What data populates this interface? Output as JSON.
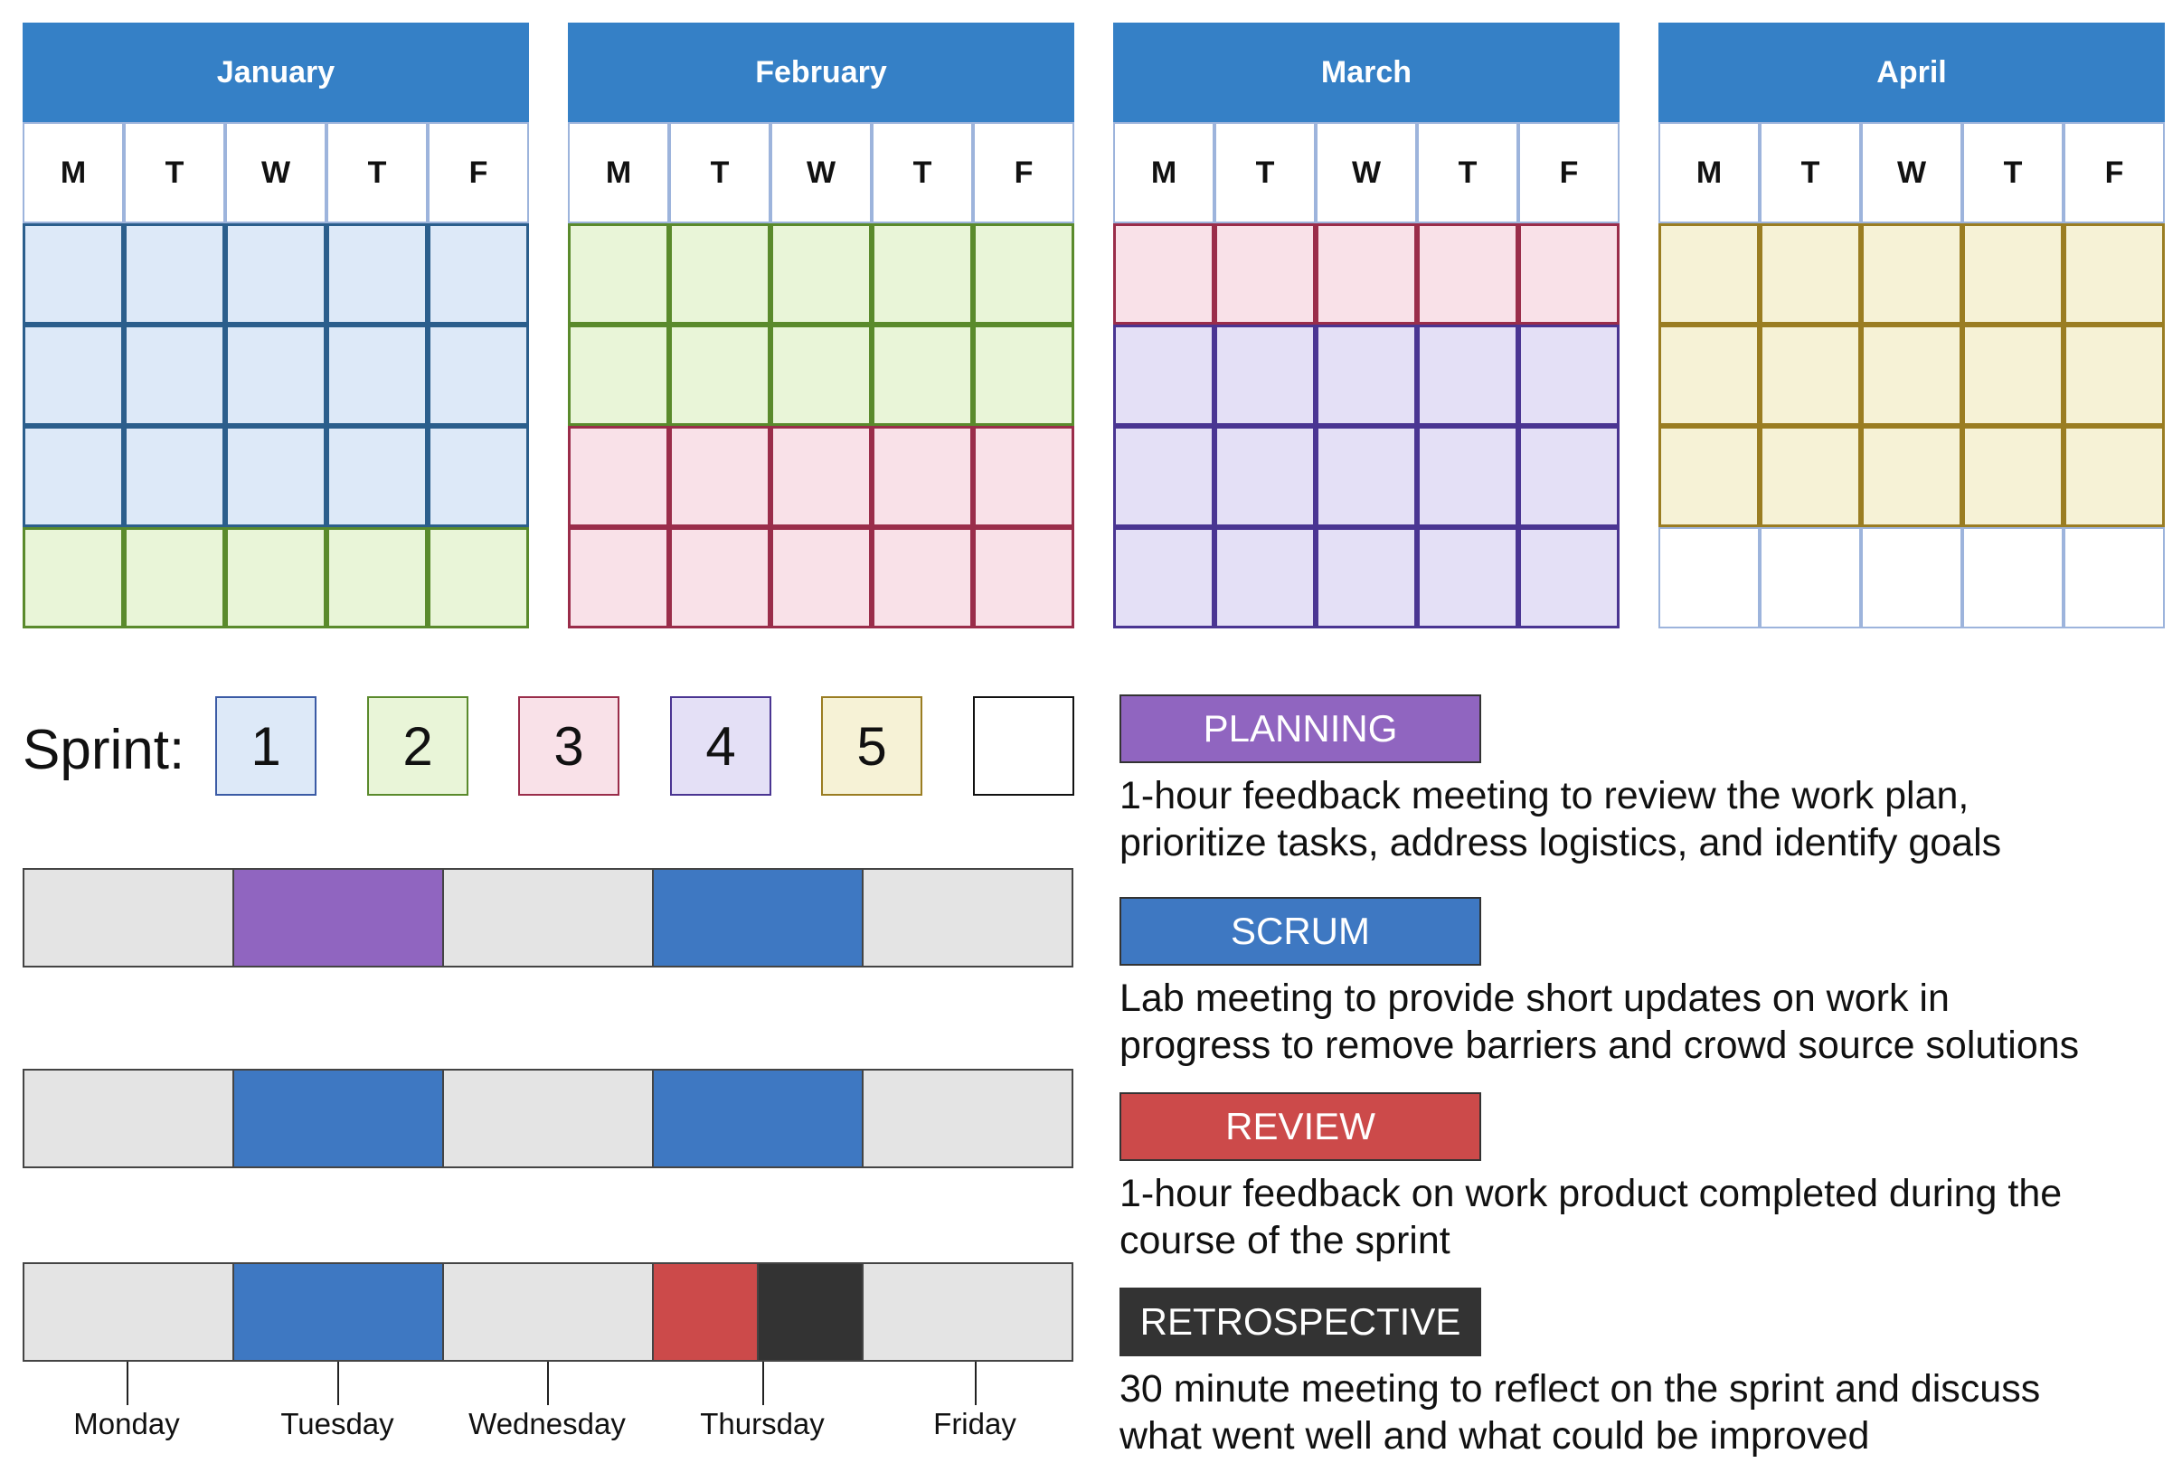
{
  "calendar": {
    "weekday_labels": [
      "M",
      "T",
      "W",
      "T",
      "F"
    ],
    "months": [
      {
        "name": "January",
        "weeks": [
          1,
          1,
          1,
          2
        ]
      },
      {
        "name": "February",
        "weeks": [
          2,
          2,
          3,
          3
        ]
      },
      {
        "name": "March",
        "weeks": [
          3,
          4,
          4,
          4
        ]
      },
      {
        "name": "April",
        "weeks": [
          5,
          5,
          5,
          0
        ]
      }
    ]
  },
  "sprint_legend": {
    "label": "Sprint:",
    "items": [
      {
        "sprint": 1,
        "text": "1"
      },
      {
        "sprint": 2,
        "text": "2"
      },
      {
        "sprint": 3,
        "text": "3"
      },
      {
        "sprint": 4,
        "text": "4"
      },
      {
        "sprint": 5,
        "text": "5"
      },
      {
        "sprint": 0,
        "text": ""
      }
    ]
  },
  "sprint_colors": {
    "0": {
      "fill": "#ffffff",
      "stroke": "#9db4dc",
      "swatch_stroke": "#111111"
    },
    "1": {
      "fill": "#dde9f8",
      "stroke": "#2b5e8c",
      "swatch_stroke": "#3b5ba5"
    },
    "2": {
      "fill": "#e9f5d8",
      "stroke": "#5a8a2c",
      "swatch_stroke": "#5a8a2c"
    },
    "3": {
      "fill": "#f9e1e8",
      "stroke": "#9a2d4a",
      "swatch_stroke": "#9a2d4a"
    },
    "4": {
      "fill": "#e4e0f6",
      "stroke": "#4a3592",
      "swatch_stroke": "#4a3592"
    },
    "5": {
      "fill": "#f6f2d6",
      "stroke": "#9a7d22",
      "swatch_stroke": "#9a7d22"
    }
  },
  "week_schedule": {
    "rows": [
      [
        [
          "none",
          1
        ],
        [
          "planning",
          1
        ],
        [
          "none",
          1
        ],
        [
          "scrum",
          1
        ],
        [
          "none",
          1
        ]
      ],
      [
        [
          "none",
          1
        ],
        [
          "scrum",
          1
        ],
        [
          "none",
          1
        ],
        [
          "scrum",
          1
        ],
        [
          "none",
          1
        ]
      ],
      [
        [
          "none",
          1
        ],
        [
          "scrum",
          1
        ],
        [
          "none",
          1
        ],
        [
          "review",
          0.5
        ],
        [
          "retrospective",
          0.5
        ],
        [
          "none",
          1
        ]
      ]
    ],
    "days": [
      "Monday",
      "Tuesday",
      "Wednesday",
      "Thursday",
      "Friday"
    ]
  },
  "event_colors": {
    "none": "#e4e4e4",
    "planning": "#9065c0",
    "scrum": "#3e78c2",
    "review": "#cc4a4a",
    "retrospective": "#333333"
  },
  "events": [
    {
      "key": "planning",
      "title": "PLANNING",
      "description": [
        "1-hour feedback meeting to review the work plan,",
        "prioritize tasks, address logistics, and identify goals"
      ]
    },
    {
      "key": "scrum",
      "title": "SCRUM",
      "description": [
        "Lab meeting to provide short updates on work in",
        "progress to remove barriers and crowd source solutions"
      ]
    },
    {
      "key": "review",
      "title": "REVIEW",
      "description": [
        "1-hour feedback on work product completed during the",
        "course of the sprint"
      ]
    },
    {
      "key": "retrospective",
      "title": "RETROSPECTIVE",
      "description": [
        "30 minute meeting to reflect on the sprint and discuss",
        "what went well and what could be improved"
      ]
    }
  ]
}
